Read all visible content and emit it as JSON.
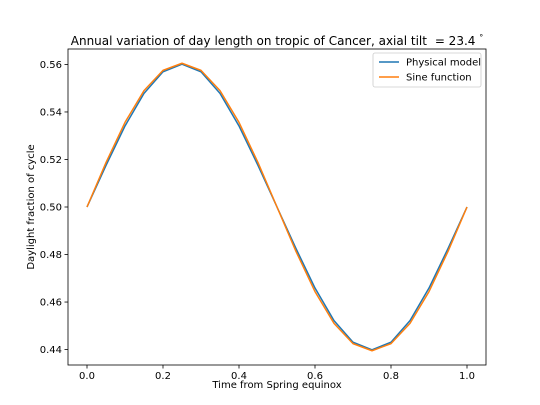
{
  "chart_data": {
    "type": "line",
    "title": "Annual variation of day length on tropic of Cancer, axial tilt",
    "title_tilt": "= 23.4",
    "title_degree": "°",
    "xlabel": "Time from Spring equinox",
    "ylabel": "Daylight fraction of cycle",
    "xlim": [
      -0.05,
      1.05
    ],
    "ylim": [
      0.4335,
      0.5665
    ],
    "x_ticks": [
      0.0,
      0.2,
      0.4,
      0.6,
      0.8,
      1.0
    ],
    "x_tick_labels": [
      "0.0",
      "0.2",
      "0.4",
      "0.6",
      "0.8",
      "1.0"
    ],
    "y_ticks": [
      0.44,
      0.46,
      0.48,
      0.5,
      0.52,
      0.54,
      0.56
    ],
    "y_tick_labels": [
      "0.44",
      "0.46",
      "0.48",
      "0.50",
      "0.52",
      "0.54",
      "0.56"
    ],
    "grid": false,
    "legend_position": "top-right",
    "x": [
      0.0,
      0.05,
      0.1,
      0.15,
      0.2,
      0.25,
      0.3,
      0.35,
      0.4,
      0.45,
      0.5,
      0.55,
      0.6,
      0.65,
      0.7,
      0.75,
      0.8,
      0.85,
      0.9,
      0.95,
      1.0
    ],
    "series": [
      {
        "name": "Physical model",
        "color": "#1f77b4",
        "values": [
          0.5,
          0.5175,
          0.5341,
          0.5478,
          0.5569,
          0.5601,
          0.5569,
          0.5478,
          0.5341,
          0.5175,
          0.5,
          0.4825,
          0.4659,
          0.4522,
          0.4431,
          0.4399,
          0.4431,
          0.4522,
          0.4659,
          0.4825,
          0.5
        ]
      },
      {
        "name": "Sine function",
        "color": "#ff7f0e",
        "values": [
          0.5,
          0.5187,
          0.5356,
          0.549,
          0.5575,
          0.5605,
          0.5575,
          0.549,
          0.5356,
          0.5187,
          0.5,
          0.4813,
          0.4644,
          0.451,
          0.4425,
          0.4395,
          0.4425,
          0.451,
          0.4644,
          0.4813,
          0.5
        ]
      }
    ]
  }
}
